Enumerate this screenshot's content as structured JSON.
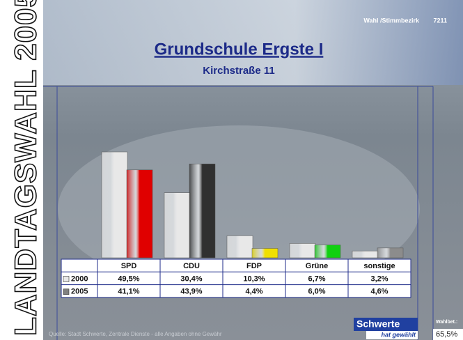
{
  "chart_data": {
    "type": "bar",
    "title": "Grundschule Ergste I",
    "subtitle": "Kirchstraße 11",
    "side_title": "LANDTAGSWAHL 2005",
    "header": "Wahl /Stimmbezirk",
    "district": "7211",
    "categories": [
      "SPD",
      "CDU",
      "FDP",
      "Grüne",
      "sonstige"
    ],
    "series": [
      {
        "name": "2000",
        "color": "#e8e8e8",
        "values": [
          49.5,
          30.4,
          10.3,
          6.7,
          3.2
        ],
        "value_labels": [
          "49,5%",
          "30,4%",
          "10,3%",
          "6,7%",
          "3,2%"
        ]
      },
      {
        "name": "2005",
        "color": "#808080",
        "colors": [
          "#e00000",
          "#303030",
          "#f0e000",
          "#10d010",
          "#8c8c8c"
        ],
        "values": [
          41.1,
          43.9,
          4.4,
          6.0,
          4.6
        ],
        "value_labels": [
          "41,1%",
          "43,9%",
          "4,4%",
          "6,0%",
          "4,6%"
        ]
      }
    ],
    "source": "Quelle: Stadt Schwerte, Zentrale Dienste - alle Angaben ohne Gewähr",
    "brand": "Schwerte",
    "brand_sub": "hat gewählt",
    "turnout_label": "Wahlbet.:",
    "turnout": "65,5%"
  }
}
